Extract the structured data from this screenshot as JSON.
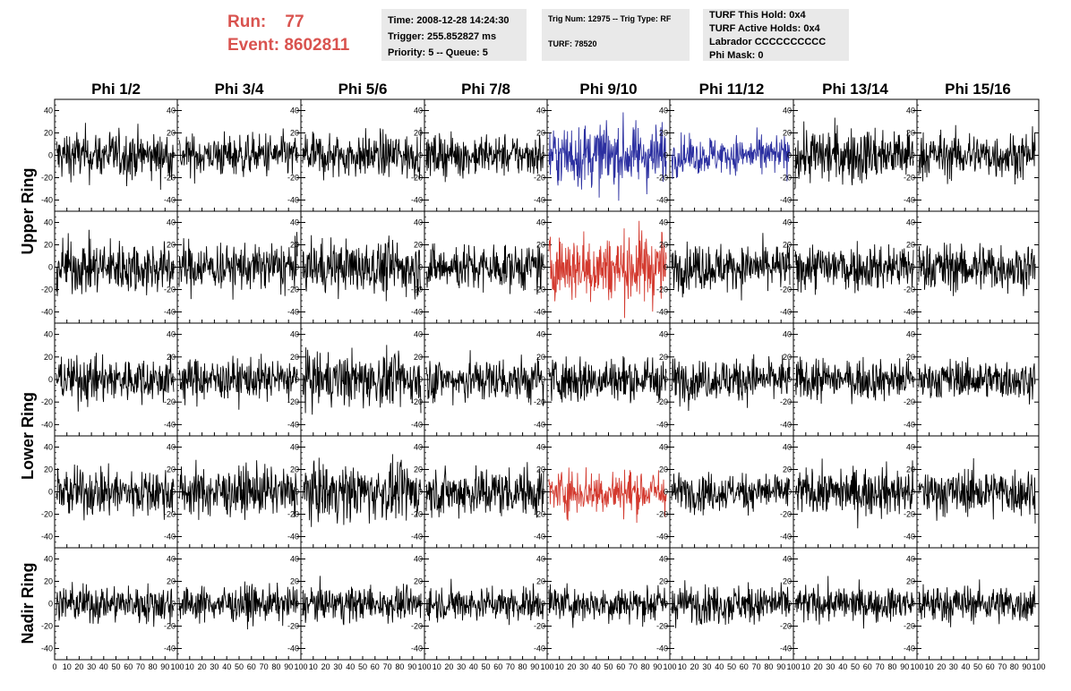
{
  "header": {
    "run_label": "Run:",
    "run_value": "77",
    "event_label": "Event:",
    "event_value": "8602811",
    "box1": [
      "Time: 2008-12-28 14:24:30",
      "Trigger: 255.852827 ms",
      "Priority: 5 -- Queue: 5"
    ],
    "box2": [
      "Trig Num: 12975 -- Trig Type: RF",
      "TURF: 78520"
    ],
    "box3": [
      "TURF This Hold: 0x4",
      "TURF Active Holds: 0x4",
      "Labrador CCCCCCCCCC",
      "Phi Mask: 0"
    ]
  },
  "colors": {
    "default": "#000000",
    "blue": "#2b2fa0",
    "red": "#d33a2f",
    "accent": "#d9534f"
  },
  "chart_data": {
    "type": "line",
    "columns": [
      "Phi 1/2",
      "Phi 3/4",
      "Phi 5/6",
      "Phi 7/8",
      "Phi 9/10",
      "Phi 11/12",
      "Phi 13/14",
      "Phi 15/16"
    ],
    "rings": [
      "Upper Ring",
      "Lower Ring",
      "Nadir Ring"
    ],
    "ring_rows": [
      2,
      2,
      1
    ],
    "xlim": [
      0,
      100
    ],
    "ylim": [
      -50,
      50
    ],
    "xticks": [
      "0",
      "10",
      "20",
      "30",
      "40",
      "50",
      "60",
      "70",
      "80",
      "90",
      "100"
    ],
    "yticks": [
      "-40",
      "-20",
      "0",
      "20",
      "40"
    ],
    "highlights": [
      {
        "row": 0,
        "col": 4,
        "color": "blue"
      },
      {
        "row": 0,
        "col": 5,
        "color": "blue"
      },
      {
        "row": 1,
        "col": 4,
        "color": "red"
      },
      {
        "row": 3,
        "col": 4,
        "color": "red"
      }
    ],
    "amplitude_by_row_col": [
      [
        14,
        12,
        13,
        12,
        18,
        11,
        16,
        13
      ],
      [
        15,
        14,
        16,
        13,
        20,
        13,
        14,
        14
      ],
      [
        13,
        12,
        15,
        13,
        13,
        12,
        12,
        11
      ],
      [
        14,
        14,
        16,
        14,
        13,
        11,
        13,
        13
      ],
      [
        11,
        10,
        10,
        10,
        10,
        11,
        10,
        11
      ]
    ]
  }
}
